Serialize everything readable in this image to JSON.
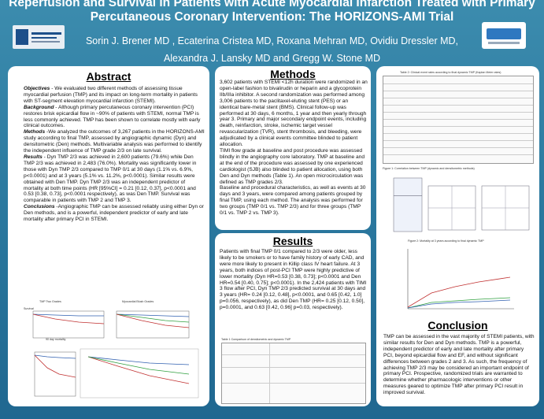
{
  "header": {
    "title_line1": "Reperfusion and Survival in Patients with Acute Myocardial Infarction Treated with Primary",
    "title_line2": "Percutaneous Coronary Intervention: The HORIZONS-AMI Trial",
    "authors_line1": "Sorin J. Brener MD , Ecaterina Cristea MD, Roxana Mehran MD, Ovidiu Dressler MD,",
    "authors_line2": "Alexandra J. Lansky MD and Gregg W. Stone MD"
  },
  "abstract": {
    "heading": "Abstract",
    "paragraphs": [
      {
        "label": "Objectives",
        "text": " - We evaluated two different methods of assessing tissue myocardial perfusion (TMP) and its impact on long-term mortality in patients with ST-segment elevation myocardial infarction (STEMI)."
      },
      {
        "label": "Background",
        "text": " - Although primary percutaneous coronary intervention (PCI) restores brisk epicardial flow in ~90% of patients with STEMI, normal TMP is less commonly achieved. TMP has been shown to correlate mostly with early clinical outcomes."
      },
      {
        "label": "Methods",
        "text": " -We analyzed the outcomes of 3,267 patients in the HORIZONS-AMI study according to final TMP, assessed by angiographic dynamic (Dyn) and densitometric (Den) methods. Multivariable analysis was performed to identify the independent influence of TMP grade 2/3 on late survival."
      },
      {
        "label": "Results",
        "text": " - Dyn TMP 2/3 was achieved in 2,600 patients (79.6%) while Den TMP 2/3 was achieved in 2,483 (76.0%). Mortality was significantly lower in those with Dyn TMP 2/3 compared to TMP 0/1 at 30 days (1.1% vs. 6.9%, p<0.0001) and at 3 years (5.1% vs. 11.2%, p<0.0001). Similar results were obtained with Den TMP. Dyn TMP 2/3 was an independent predictor of mortality at both time points (HR [95%CI] = 0.21 [0.12, 0.37], p<0.0001 and 0.53 [0.38, 0.73], p<0.0001 respectively), as was Den TMP. Survival was comparable in patients with TMP 2 and TMP 3."
      },
      {
        "label": "Conclusions",
        "text": " -Angiographic TMP can be assessed reliably using either Dyn or Den methods, and is a powerful, independent predictor of early and late mortality after primary PCI in STEMI."
      }
    ],
    "figure_labels": [
      "TMP Two Grades",
      "Myocardial Blush Grades",
      "Survival",
      "90 day mortality"
    ]
  },
  "methods": {
    "heading": "Methods",
    "paragraphs": [
      "3,602 patients with STEMI <12h duration were randomized in an open-label fashion to bivalirudin or heparin and a glycoprotein IIb/IIIa inhibitor. A second randomization was performed among 3,006 patients to the paclitaxel-eluting stent (PES) or an identical bare-metal stent (BMS). Clinical follow-up was performed at 30 days, 6 months, 1 year and then yearly through year 3. Primary and major secondary endpoint events, including death, reinfarction, stroke, ischemic target vessel revascularization (TVR), stent thrombosis, and bleeding, were adjudicated by a clinical events committee blinded to patient allocation.",
      "TIMI flow grade at baseline and post procedure was assessed blindly in the angiography core laboratory. TMP at baseline and at the end of the procedure was assessed by one experienced cardiologist (SJB) also blinded to patient allocation, using both Den and Dyn methods (Table 1). An open microcirculation was defined as TMP grades 2/3.",
      "Baseline and procedural characteristics, as well as events at 30 days and 3 years, were compared among patients grouped by final TMP, using each method. The analysis was performed for two groups (TMP 0/1 vs. TMP 2/3) and for three groups (TMP 0/1 vs. TMP 2 vs. TMP 3)."
    ]
  },
  "results": {
    "heading": "Results",
    "text": "Patients with final TMP 0/1 compared to 2/3 were older, less likely to be smokers or to have family history of early CAD, and were more likely to present in Killip class IV heart failure. At 3 years, both indices of post-PCI TMP were highly predictive of lower mortality (Dyn HR=0.53 [0.38, 0.73]; p<0.0001 and Den HR=0.54 [0.40, 0.75]; p<0.0001). In the 2,424 patients with TIMI 3 flow after PCI, Dyn TMP 2/3 predicted survival at 30 days and 3 years (HR= 0.24 [0.12, 0.48], p<0.0001, and 0.65 [0.42, 1.0] p=0.056, respectively), as did Den TMP (HR= 0.25 [0.12, 0.50], p=0.0001, and 0.63 [0.42, 0.96] p=0.03, respectively).",
    "table_caption": "Table 1 Comparison of densitometric and dynamic TMP"
  },
  "right": {
    "table_caption": "Table 2: Clinical event rates according to final dynamic TMP (Kaplan Meier rates)",
    "figure1_caption": "Figure 1: Correlation between TMP (dynamic and densitometric methods)",
    "figure2_caption": "Figure 2: Mortality at 3 years according to final dynamic TMP"
  },
  "conclusion": {
    "heading": "Conclusion",
    "text": "TMP can be assessed in the vast majority of STEMI patients, with similar results for Den and Dyn methods. TMP is a powerful, independent predictor of early and late mortality after primary PCI, beyond epicardial flow and EF, and without significant differences between grades 2 and 3. As such, the frequency of achieving TMP 2/3 may be considered an important endpoint of primary PCI. Prospective, randomized trials are warranted to determine whether pharmacologic interventions or other measures geared to optimize TMP after primary PCI result in improved survival."
  }
}
